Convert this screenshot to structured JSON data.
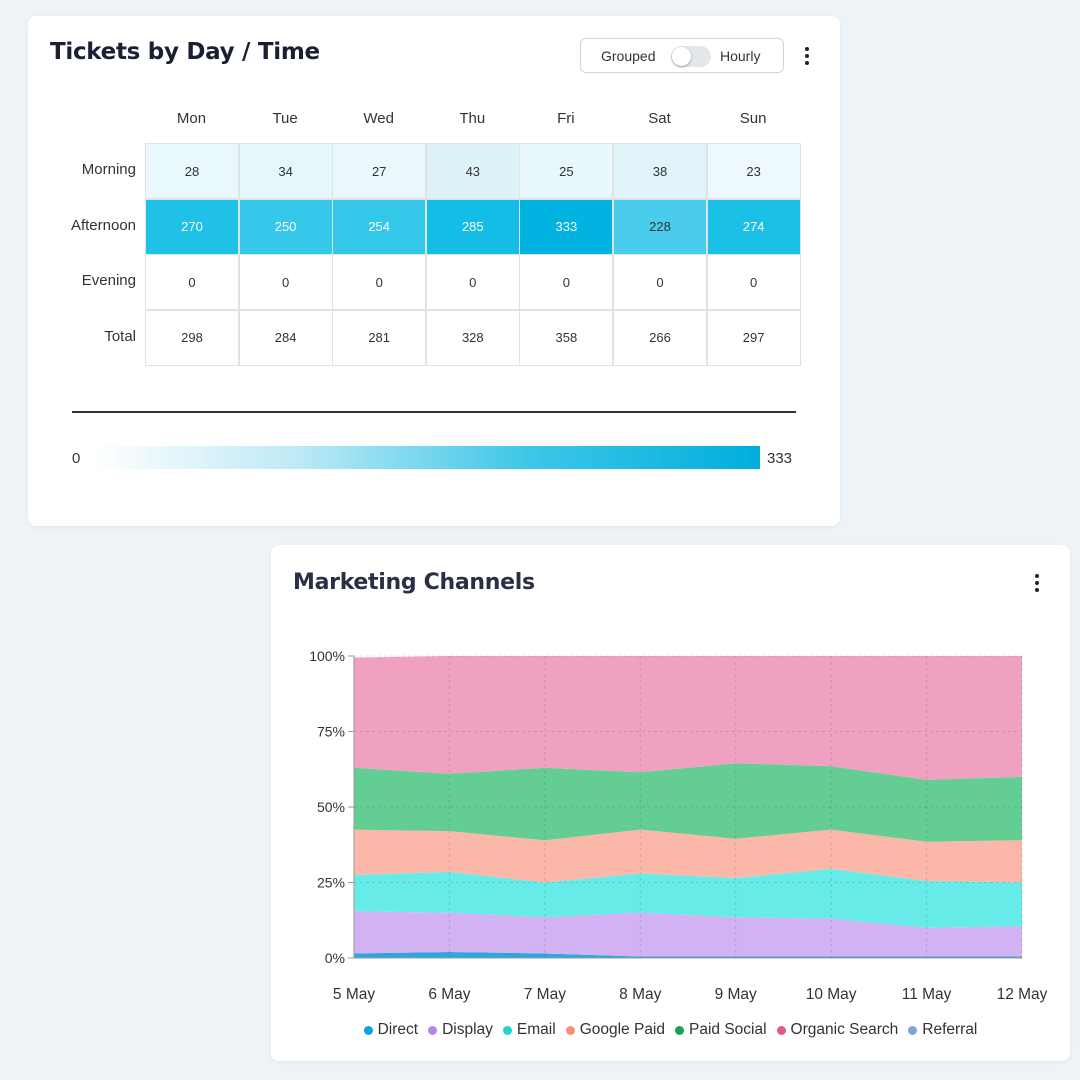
{
  "tickets_card": {
    "title": "Tickets by Day / Time",
    "toggle": {
      "left_label": "Grouped",
      "right_label": "Hourly",
      "state": "Grouped"
    },
    "columns": [
      "Mon",
      "Tue",
      "Wed",
      "Thu",
      "Fri",
      "Sat",
      "Sun"
    ],
    "rows": [
      {
        "label": "Morning",
        "values": [
          28,
          34,
          27,
          43,
          25,
          38,
          23
        ]
      },
      {
        "label": "Afternoon",
        "values": [
          270,
          250,
          254,
          285,
          333,
          228,
          274
        ]
      },
      {
        "label": "Evening",
        "values": [
          0,
          0,
          0,
          0,
          0,
          0,
          0
        ]
      },
      {
        "label": "Total",
        "values": [
          298,
          284,
          281,
          328,
          358,
          266,
          297
        ]
      }
    ],
    "scale": {
      "min": "0",
      "max": "333"
    },
    "colors": {
      "morning_cells": [
        "#e9f8fc",
        "#e6f7fb",
        "#eaf8fc",
        "#def3f8",
        "#e8f7fc",
        "#e0f4fa",
        "#edf9fc"
      ],
      "afternoon_cells": [
        "#1fc1e7",
        "#35c8ea",
        "#33c7ea",
        "#14bde5",
        "#00b3e0",
        "#4acdec",
        "#1ac0e6"
      ]
    }
  },
  "marketing_card": {
    "title": "Marketing Channels",
    "legend": [
      {
        "name": "Direct",
        "color": "#0ea0de"
      },
      {
        "name": "Display",
        "color": "#b185ec"
      },
      {
        "name": "Email",
        "color": "#22d3d4"
      },
      {
        "name": "Google Paid",
        "color": "#fb8e78"
      },
      {
        "name": "Paid Social",
        "color": "#1aa34a"
      },
      {
        "name": "Organic Search",
        "color": "#e2568a"
      },
      {
        "name": "Referral",
        "color": "#7fa4dc"
      }
    ]
  },
  "chart_data": {
    "type": "area",
    "stacked": "percent",
    "x": [
      "5 May",
      "6 May",
      "7 May",
      "8 May",
      "9 May",
      "10 May",
      "11 May",
      "12 May"
    ],
    "y_ticks": [
      "0%",
      "25%",
      "50%",
      "75%",
      "100%"
    ],
    "ylim": [
      0,
      100
    ],
    "grid": true,
    "legend_position": "bottom",
    "series": [
      {
        "name": "Direct",
        "color": "#0ea0de",
        "fill": "#2ca7e0",
        "values": [
          1.5,
          2.0,
          1.5,
          0.5,
          0.5,
          0.5,
          0.5,
          0.5
        ]
      },
      {
        "name": "Display",
        "color": "#b185ec",
        "fill": "#d3b2f4",
        "values": [
          14.0,
          13.0,
          12.0,
          14.5,
          13.0,
          12.5,
          9.5,
          10.0
        ]
      },
      {
        "name": "Email",
        "color": "#22d3d4",
        "fill": "#66ebe8",
        "values": [
          12.0,
          13.5,
          11.5,
          13.0,
          13.0,
          16.5,
          15.5,
          14.5
        ]
      },
      {
        "name": "Google Paid",
        "color": "#fb8e78",
        "fill": "#fbb8a8",
        "values": [
          15.0,
          13.5,
          14.0,
          14.5,
          13.0,
          13.0,
          13.0,
          14.0
        ]
      },
      {
        "name": "Paid Social",
        "color": "#1aa34a",
        "fill": "#64cd93",
        "values": [
          20.5,
          19.0,
          24.0,
          19.0,
          25.0,
          21.0,
          20.5,
          21.0
        ]
      },
      {
        "name": "Organic Search",
        "color": "#e2568a",
        "fill": "#f0a1c2",
        "values": [
          36.5,
          39.0,
          37.0,
          38.5,
          35.5,
          36.5,
          41.0,
          40.0
        ]
      },
      {
        "name": "Referral",
        "color": "#7fa4dc",
        "fill": "#a9c2e8",
        "values": [
          0,
          0,
          0,
          0,
          0,
          0,
          0,
          0
        ]
      }
    ]
  }
}
